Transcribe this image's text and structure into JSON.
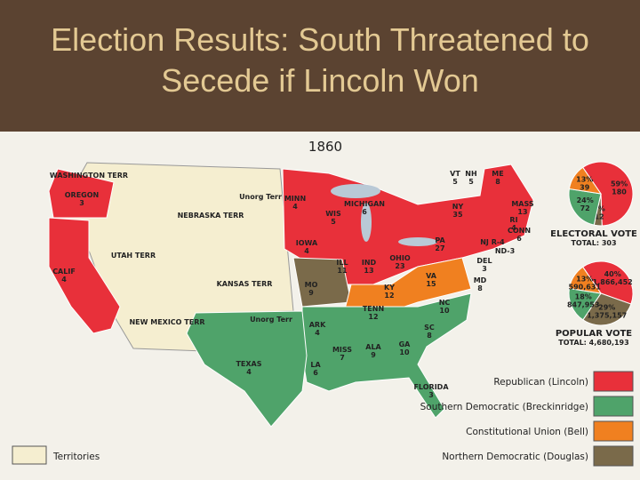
{
  "title": "Election Results:  South Threatened to Secede if Lincoln Won",
  "map": {
    "year": "1860",
    "regions": [
      {
        "name": "WASHINGTON TERR"
      },
      {
        "name": "OREGON",
        "votes": 3
      },
      {
        "name": "CALIF",
        "votes": 4
      },
      {
        "name": "UTAH TERR"
      },
      {
        "name": "NEBRASKA TERR"
      },
      {
        "name": "Unorg Terr"
      },
      {
        "name": "KANSAS TERR"
      },
      {
        "name": "NEW MEXICO TERR"
      },
      {
        "name": "Unorg Terr"
      },
      {
        "name": "TEXAS",
        "votes": 4
      },
      {
        "name": "MINN",
        "votes": 4
      },
      {
        "name": "WIS",
        "votes": 5
      },
      {
        "name": "MICHIGAN",
        "votes": 6
      },
      {
        "name": "IOWA",
        "votes": 4
      },
      {
        "name": "ILL",
        "votes": 11
      },
      {
        "name": "IND",
        "votes": 13
      },
      {
        "name": "OHIO",
        "votes": 23
      },
      {
        "name": "PA",
        "votes": 27
      },
      {
        "name": "NY",
        "votes": 35
      },
      {
        "name": "VT",
        "votes": 5
      },
      {
        "name": "NH",
        "votes": 5
      },
      {
        "name": "ME",
        "votes": 8
      },
      {
        "name": "MASS",
        "votes": 13
      },
      {
        "name": "RI",
        "votes": 4
      },
      {
        "name": "CONN",
        "votes": 6
      },
      {
        "name": "NJ R-4"
      },
      {
        "name": "ND-3"
      },
      {
        "name": "DEL",
        "votes": 3
      },
      {
        "name": "MD",
        "votes": 8
      },
      {
        "name": "MO",
        "votes": 9
      },
      {
        "name": "KY",
        "votes": 12
      },
      {
        "name": "VA",
        "votes": 15
      },
      {
        "name": "TENN",
        "votes": 12
      },
      {
        "name": "NC",
        "votes": 10
      },
      {
        "name": "SC",
        "votes": 8
      },
      {
        "name": "GA",
        "votes": 10
      },
      {
        "name": "ALA",
        "votes": 9
      },
      {
        "name": "MISS",
        "votes": 7
      },
      {
        "name": "ARK",
        "votes": 4
      },
      {
        "name": "LA",
        "votes": 6
      },
      {
        "name": "FLORIDA",
        "votes": 3
      }
    ]
  },
  "pies": [
    {
      "title": "ELECTORAL VOTE",
      "total": "TOTAL: 303",
      "slices": [
        {
          "value": 59,
          "label": "59%",
          "votes": 180,
          "color": "#e8303a"
        },
        {
          "value": 4,
          "label": "4%",
          "votes": 12,
          "color": "#7a6a4a"
        },
        {
          "value": 24,
          "label": "24%",
          "votes": 72,
          "color": "#4fa36a"
        },
        {
          "value": 13,
          "label": "13%",
          "votes": 39,
          "color": "#f08020"
        }
      ]
    },
    {
      "title": "POPULAR VOTE",
      "total": "TOTAL: 4,680,193",
      "slices": [
        {
          "value": 40,
          "label": "40%",
          "votes": "1,866,452",
          "color": "#e8303a"
        },
        {
          "value": 29,
          "label": "29%",
          "votes": "1,375,157",
          "color": "#7a6a4a"
        },
        {
          "value": 18,
          "label": "18%",
          "votes": "847,953",
          "color": "#4fa36a"
        },
        {
          "value": 13,
          "label": "13%",
          "votes": "590,631",
          "color": "#f08020"
        }
      ]
    }
  ],
  "legend": [
    {
      "label": "Republican (Lincoln)",
      "color": "#e8303a"
    },
    {
      "label": "Southern Democratic (Breckinridge)",
      "color": "#4fa36a"
    },
    {
      "label": "Constitutional Union (Bell)",
      "color": "#f08020"
    },
    {
      "label": "Northern Democratic (Douglas)",
      "color": "#7a6a4a"
    },
    {
      "label": "Territories",
      "color": "#f5eed0"
    }
  ]
}
